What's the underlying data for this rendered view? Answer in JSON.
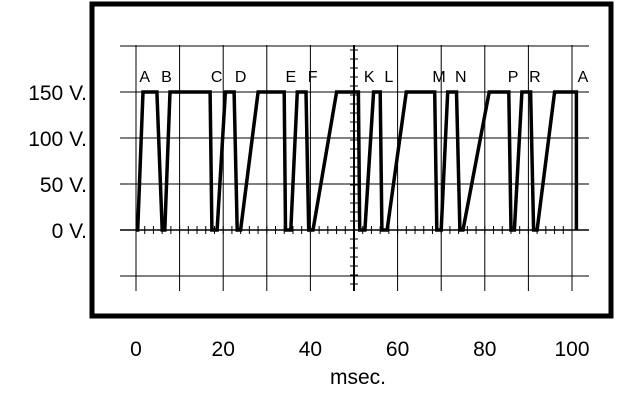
{
  "chart_data": {
    "type": "line",
    "title": "",
    "xlabel": "msec.",
    "ylabel": "",
    "xlim": [
      0,
      100
    ],
    "ylim": [
      0,
      150
    ],
    "grid": true,
    "x_ticks": [
      "0",
      "20",
      "40",
      "60",
      "80",
      "100"
    ],
    "y_ticks": [
      "0 V.",
      "50 V.",
      "100 V.",
      "150 V."
    ],
    "pulse_labels": [
      {
        "text": "A",
        "x": 2
      },
      {
        "text": "B",
        "x": 7
      },
      {
        "text": "C",
        "x": 18.5
      },
      {
        "text": "D",
        "x": 24
      },
      {
        "text": "E",
        "x": 35.5
      },
      {
        "text": "F",
        "x": 40.5
      },
      {
        "text": "K",
        "x": 53.5
      },
      {
        "text": "L",
        "x": 58
      },
      {
        "text": "M",
        "x": 69.5
      },
      {
        "text": "N",
        "x": 74.5
      },
      {
        "text": "P",
        "x": 86.5
      },
      {
        "text": "R",
        "x": 91.5
      },
      {
        "text": "A",
        "x": 102.5
      }
    ],
    "series": [
      {
        "x": [
          0,
          0.4,
          1.6,
          3.2,
          4.8,
          6,
          6.6,
          7.8,
          17,
          17.4,
          18.6,
          20.5,
          22.5,
          23.2,
          24,
          28,
          34,
          34.3,
          35.5,
          37,
          39,
          39.6,
          40.6,
          46,
          51,
          51.3,
          52.5,
          54.5,
          56,
          56.4,
          57.6,
          62,
          68.5,
          69,
          70,
          71.5,
          73.5,
          74.3,
          75,
          81,
          85.5,
          86,
          86.8,
          88.5,
          90.5,
          91.2,
          92,
          96,
          101,
          101
        ],
        "y": [
          0,
          0,
          150,
          150,
          150,
          0,
          0,
          150,
          150,
          0,
          0,
          150,
          150,
          0,
          0,
          150,
          150,
          0,
          0,
          150,
          150,
          0,
          0,
          150,
          150,
          0,
          0,
          150,
          150,
          0,
          0,
          150,
          150,
          0,
          0,
          150,
          150,
          0,
          0,
          150,
          150,
          0,
          0,
          150,
          150,
          0,
          0,
          150,
          150,
          0
        ]
      }
    ]
  }
}
